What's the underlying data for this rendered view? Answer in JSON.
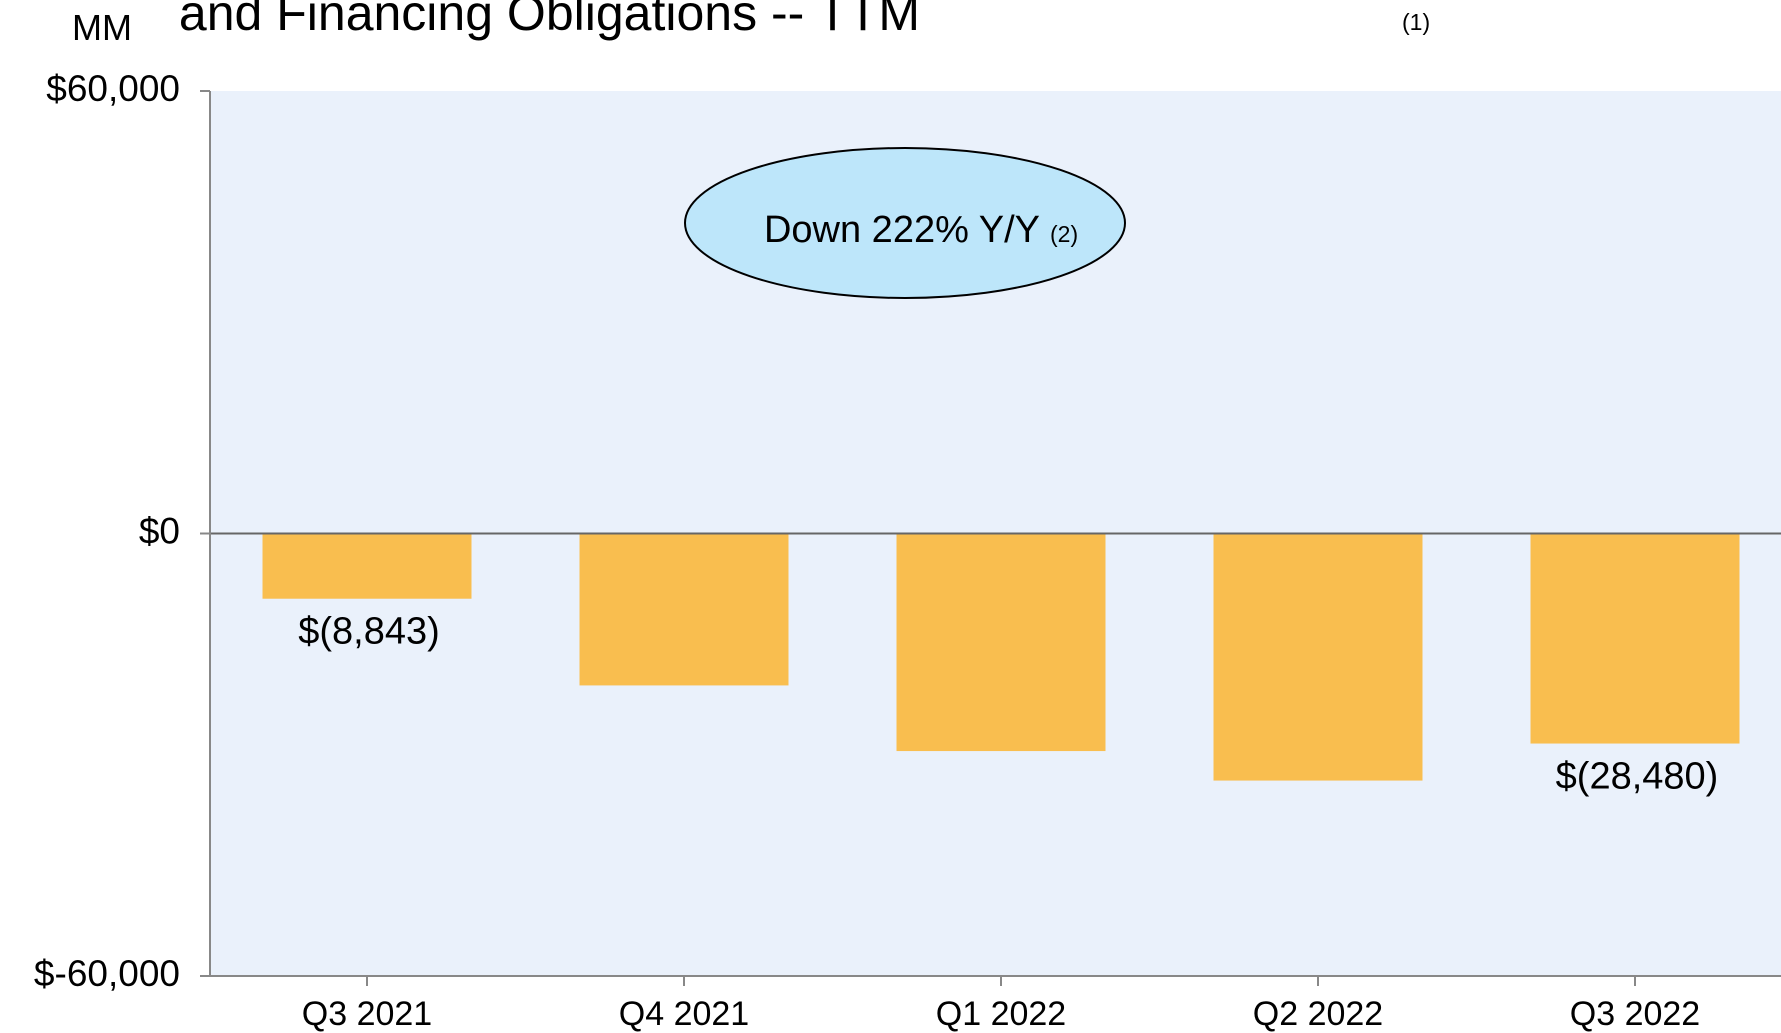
{
  "chart_data": {
    "type": "bar",
    "title": "and Financing Obligations -- TTM",
    "title_note": "(1)",
    "y_axis_label": "MM",
    "annotation": "Down 222% Y/Y",
    "annotation_note": "(2)",
    "categories": [
      "Q3 2021",
      "Q4 2021",
      "Q1 2022",
      "Q2 2022",
      "Q3 2022"
    ],
    "values": [
      -8843,
      -20600,
      -29500,
      -33500,
      -28480
    ],
    "value_labels": [
      "$(8,843)",
      null,
      null,
      null,
      "$(28,480)"
    ],
    "color": "#F9BE4F",
    "ylim": [
      -60000,
      60000
    ],
    "yticks": [
      {
        "value": -60000,
        "label": "$-60,000"
      },
      {
        "value": 0,
        "label": "$0"
      },
      {
        "value": 60000,
        "label": "$60,000"
      }
    ],
    "grid": false
  }
}
